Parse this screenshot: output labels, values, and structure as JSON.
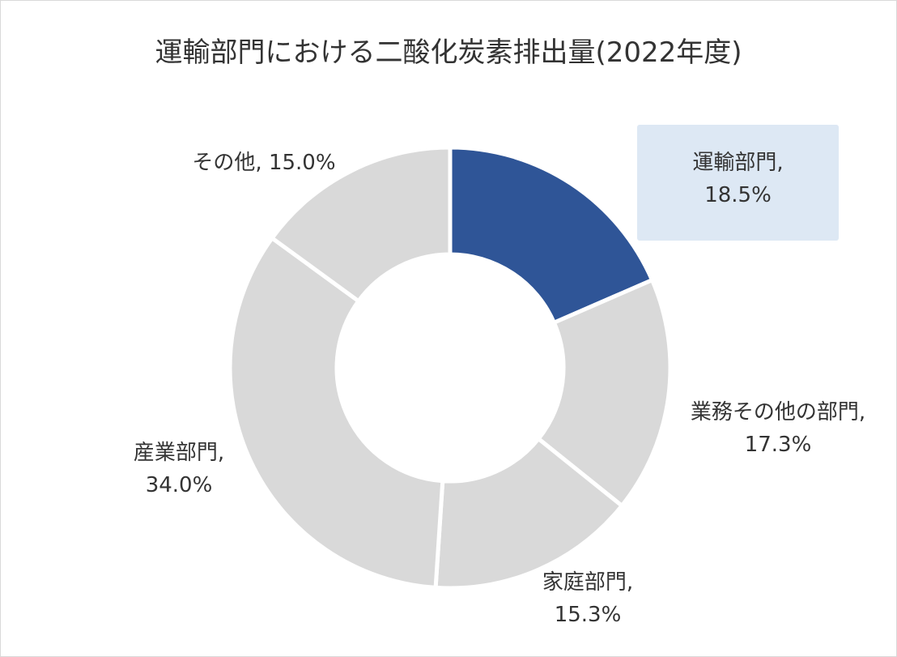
{
  "chart_data": {
    "type": "pie",
    "variant": "donut",
    "title": "運輸部門における二酸化炭素排出量(2022年度)",
    "slices": [
      {
        "name": "運輸部門",
        "value": 18.5,
        "label_name": "運輸部門,",
        "label_value": "18.5%",
        "color": "#2f5597",
        "highlighted": true
      },
      {
        "name": "業務その他の部門",
        "value": 17.3,
        "label_name": "業務その他の部門,",
        "label_value": "17.3%",
        "color": "#d9d9d9"
      },
      {
        "name": "家庭部門",
        "value": 15.3,
        "label_name": "家庭部門,",
        "label_value": "15.3%",
        "color": "#d9d9d9"
      },
      {
        "name": "産業部門",
        "value": 34.0,
        "label_name": "産業部門,",
        "label_value": "34.0%",
        "color": "#d9d9d9"
      },
      {
        "name": "その他",
        "value": 15.0,
        "label_name": "その他,",
        "label_value": "15.0%",
        "color": "#d9d9d9"
      }
    ],
    "start_angle": "top",
    "direction": "clockwise",
    "legend": "none"
  }
}
